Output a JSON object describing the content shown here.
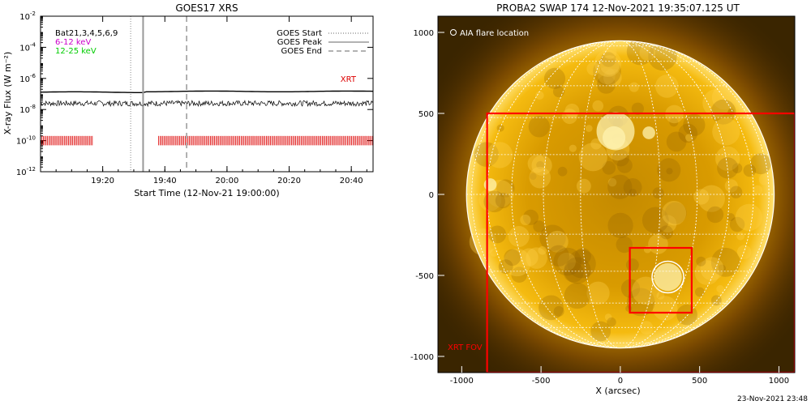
{
  "footer": {
    "timestamp": "23-Nov-2021 23:48"
  },
  "chart_data": [
    {
      "type": "line",
      "title": "GOES17 XRS",
      "xlabel": "Start Time (12-Nov-21 19:00:00)",
      "ylabel": "X-ray Flux (W m⁻²)",
      "y_scale": "log",
      "ylim": [
        1e-12,
        0.01
      ],
      "xlim_minutes": [
        0,
        107
      ],
      "x_ticks": [
        {
          "label": "19:20",
          "minutes": 20
        },
        {
          "label": "19:40",
          "minutes": 40
        },
        {
          "label": "20:00",
          "minutes": 60
        },
        {
          "label": "20:20",
          "minutes": 80
        },
        {
          "label": "20:40",
          "minutes": 100
        }
      ],
      "y_ticks": [
        {
          "base": "10",
          "exp": "-2",
          "value": 0.01
        },
        {
          "base": "10",
          "exp": "-4",
          "value": 0.0001
        },
        {
          "base": "10",
          "exp": "-6",
          "value": 1e-06
        },
        {
          "base": "10",
          "exp": "-8",
          "value": 1e-08
        },
        {
          "base": "10",
          "exp": "-10",
          "value": 1e-10
        },
        {
          "base": "10",
          "exp": "-12",
          "value": 1e-12
        }
      ],
      "series": [
        {
          "name": "6-12 keV",
          "color": "#000000",
          "style": "solid",
          "approx_value": 1.3e-07
        },
        {
          "name": "12-25 keV",
          "color": "#000000",
          "style": "noisy",
          "approx_value": 2.5e-08
        }
      ],
      "legend_left": [
        {
          "text": "Bat21,3,4,5,6,9",
          "color": "#000000"
        },
        {
          "text": "6-12 keV",
          "color": "#cc00cc"
        },
        {
          "text": "12-25 keV",
          "color": "#00cc00"
        }
      ],
      "legend_right": [
        {
          "text": "GOES Start",
          "style": "dotted"
        },
        {
          "text": "GOES Peak",
          "style": "solid"
        },
        {
          "text": "GOES End",
          "style": "dashed"
        }
      ],
      "goes_lines_minutes": {
        "start": 29,
        "peak": 33,
        "end": 47
      },
      "xrt_label": "XRT",
      "xrt_label_value": 1e-06,
      "xrt_coverage_minutes": [
        [
          0,
          17
        ],
        [
          38,
          107
        ]
      ],
      "xrt_band_range": [
        5e-11,
        2e-10
      ]
    },
    {
      "type": "image",
      "title": "PROBA2 SWAP 174 12-Nov-2021 19:35:07.125 UT",
      "xlabel": "X (arcsec)",
      "ylabel": "",
      "xlim": [
        -1150,
        1100
      ],
      "ylim": [
        -1100,
        1100
      ],
      "x_ticks": [
        -1000,
        -500,
        0,
        500,
        1000
      ],
      "y_ticks": [
        1000,
        500,
        0,
        -500,
        -1000
      ],
      "legend": "AIA flare location",
      "fov_label": "XRT FOV",
      "solar_radius_arcsec": 970,
      "xrt_fov": {
        "x": [
          -840,
          1100
        ],
        "y": [
          -1100,
          500
        ]
      },
      "xrt_small_box": {
        "x": [
          60,
          450
        ],
        "y": [
          -730,
          -330
        ]
      },
      "flare_circle": {
        "x": 300,
        "y": -510,
        "r": 100
      }
    }
  ]
}
